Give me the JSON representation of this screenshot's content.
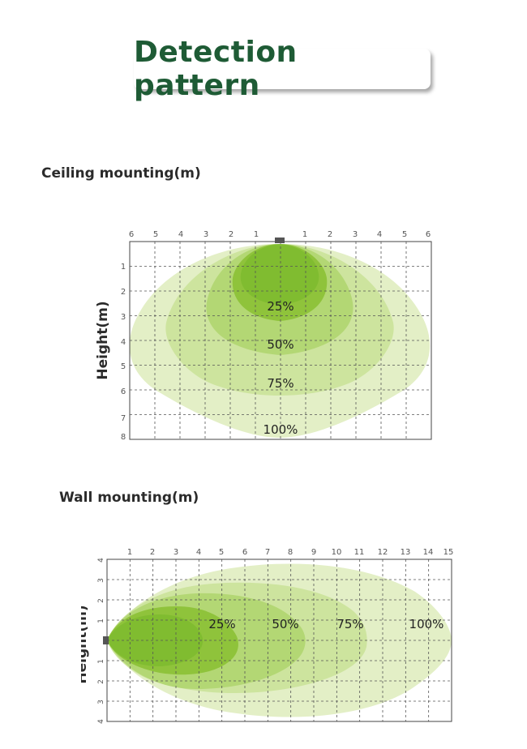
{
  "title": "Detection pattern",
  "ceiling": {
    "label": "Ceiling mounting(m)",
    "axis_label": "Height(m)",
    "x_ticks": [
      "6",
      "5",
      "4",
      "3",
      "2",
      "1",
      "1",
      "2",
      "3",
      "4",
      "5",
      "6"
    ],
    "y_ticks": [
      "1",
      "2",
      "3",
      "4",
      "5",
      "6",
      "7",
      "8"
    ],
    "zones": [
      "25%",
      "50%",
      "75%",
      "100%"
    ]
  },
  "wall": {
    "label": "Wall mounting(m)",
    "axis_label": "Height(m)",
    "x_ticks": [
      "1",
      "2",
      "3",
      "4",
      "5",
      "6",
      "7",
      "8",
      "9",
      "10",
      "11",
      "12",
      "13",
      "14",
      "15"
    ],
    "y_ticks_top": [
      "4",
      "3",
      "2",
      "1"
    ],
    "y_ticks_bottom": [
      "1",
      "2",
      "3",
      "4"
    ],
    "zones": [
      "25%",
      "50%",
      "75%",
      "100%"
    ]
  },
  "colors": {
    "title": "#1e5b35",
    "zone_100": "#e3efc6",
    "zone_75": "#cde49e",
    "zone_50": "#b3d774",
    "zone_25": "#8fc33b",
    "core": "#6db41f",
    "grid": "#555555"
  }
}
